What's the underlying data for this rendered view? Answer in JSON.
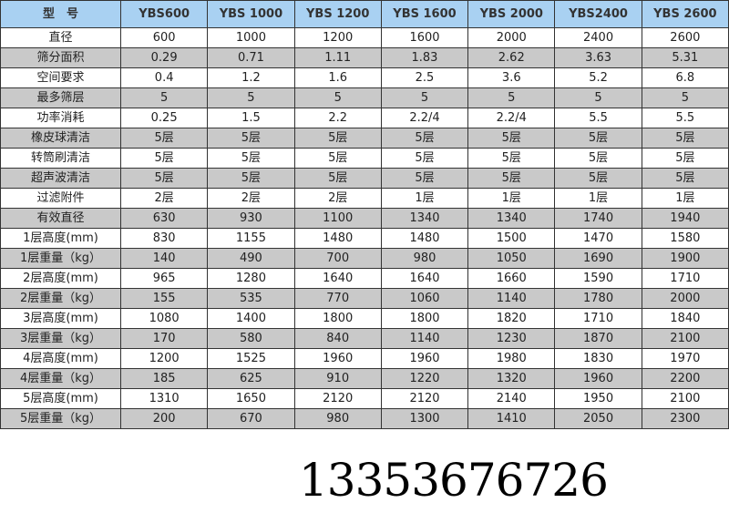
{
  "header": [
    "型　号",
    "YBS600",
    "YBS 1000",
    "YBS 1200",
    "YBS 1600",
    "YBS 2000",
    "YBS2400",
    "YBS 2600"
  ],
  "rows": [
    [
      "直径",
      "600",
      "1000",
      "1200",
      "1600",
      "2000",
      "2400",
      "2600"
    ],
    [
      "筛分面积",
      "0.29",
      "0.71",
      "1.11",
      "1.83",
      "2.62",
      "3.63",
      "5.31"
    ],
    [
      "空间要求",
      "0.4",
      "1.2",
      "1.6",
      "2.5",
      "3.6",
      "5.2",
      "6.8"
    ],
    [
      "最多筛层",
      "5",
      "5",
      "5",
      "5",
      "5",
      "5",
      "5"
    ],
    [
      "功率消耗",
      "0.25",
      "1.5",
      "2.2",
      "2.2/4",
      "2.2/4",
      "5.5",
      "5.5"
    ],
    [
      "橡皮球清洁",
      "5层",
      "5层",
      "5层",
      "5层",
      "5层",
      "5层",
      "5层"
    ],
    [
      "转筒刷清洁",
      "5层",
      "5层",
      "5层",
      "5层",
      "5层",
      "5层",
      "5层"
    ],
    [
      "超声波清洁",
      "5层",
      "5层",
      "5层",
      "5层",
      "5层",
      "5层",
      "5层"
    ],
    [
      "过滤附件",
      "2层",
      "2层",
      "2层",
      "1层",
      "1层",
      "1层",
      "1层"
    ],
    [
      "有效直径",
      "630",
      "930",
      "1100",
      "1340",
      "1340",
      "1740",
      "1940"
    ],
    [
      "1层高度(mm)",
      "830",
      "1155",
      "1480",
      "1480",
      "1500",
      "1470",
      "1580"
    ],
    [
      "1层重量（kg）",
      "140",
      "490",
      "700",
      "980",
      "1050",
      "1690",
      "1900"
    ],
    [
      "2层高度(mm)",
      "965",
      "1280",
      "1640",
      "1640",
      "1660",
      "1590",
      "1710"
    ],
    [
      "2层重量（kg）",
      "155",
      "535",
      "770",
      "1060",
      "1140",
      "1780",
      "2000"
    ],
    [
      "3层高度(mm)",
      "1080",
      "1400",
      "1800",
      "1800",
      "1820",
      "1710",
      "1840"
    ],
    [
      "3层重量（kg）",
      "170",
      "580",
      "840",
      "1140",
      "1230",
      "1870",
      "2100"
    ],
    [
      "4层高度(mm)",
      "1200",
      "1525",
      "1960",
      "1960",
      "1980",
      "1830",
      "1970"
    ],
    [
      "4层重量（kg）",
      "185",
      "625",
      "910",
      "1220",
      "1320",
      "1960",
      "2200"
    ],
    [
      "5层高度(mm)",
      "1310",
      "1650",
      "2120",
      "2120",
      "2140",
      "1950",
      "2100"
    ],
    [
      "5层重量（kg）",
      "200",
      "670",
      "980",
      "1300",
      "1410",
      "2050",
      "2300"
    ]
  ],
  "watermark": "13353676726",
  "colors": {
    "header_bg": "#a9d1f2",
    "alt_row_bg": "#c9c9c9"
  }
}
